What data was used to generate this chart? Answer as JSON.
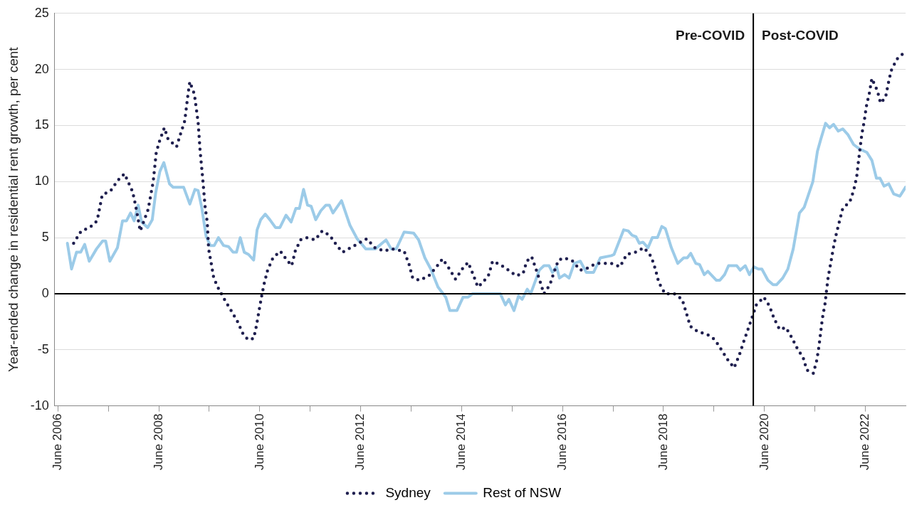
{
  "chart_data": {
    "type": "line",
    "ylabel": "Year-ended change in residential rent growth, per cent",
    "xlim": [
      "2006-05-09",
      "2023-03-19"
    ],
    "xticks": [
      {
        "value": "2006-06",
        "label": "June 2006"
      },
      {
        "value": "2007-06",
        "label": null
      },
      {
        "value": "2008-06",
        "label": "June 2008"
      },
      {
        "value": "2009-06",
        "label": null
      },
      {
        "value": "2010-06",
        "label": "June 2010"
      },
      {
        "value": "2011-06",
        "label": null
      },
      {
        "value": "2012-06",
        "label": "June 2012"
      },
      {
        "value": "2013-06",
        "label": null
      },
      {
        "value": "2014-06",
        "label": "June 2014"
      },
      {
        "value": "2015-06",
        "label": null
      },
      {
        "value": "2016-06",
        "label": "June 2016"
      },
      {
        "value": "2017-06",
        "label": null
      },
      {
        "value": "2018-06",
        "label": "June 2018"
      },
      {
        "value": "2019-06",
        "label": null
      },
      {
        "value": "2020-06",
        "label": "June 2020"
      },
      {
        "value": "2021-06",
        "label": null
      },
      {
        "value": "2022-06",
        "label": "June 2022"
      }
    ],
    "ylim": [
      -10,
      25
    ],
    "yticks": [
      -10,
      -5,
      0,
      5,
      10,
      15,
      20,
      25
    ],
    "grid": "y",
    "legend": "bottom",
    "marker": "none",
    "ref_lines": [
      {
        "axis": "y",
        "value": 0,
        "color": "#000000"
      },
      {
        "axis": "x",
        "value": "2020-03-12",
        "color": "#000000"
      }
    ],
    "annotations": [
      "Pre-COVID",
      "Post-COVID"
    ],
    "series": [
      {
        "name": "Sydney",
        "color": "#1f1f4f",
        "line_style": "dotted",
        "x": [
          "2006-09-23",
          "2006-11-17",
          "2007-01-18",
          "2007-03-12",
          "2007-04-18",
          "2007-06-19",
          "2007-08-09",
          "2007-09-26",
          "2007-11-24",
          "2007-12-15",
          "2008-01-18",
          "2008-03-15",
          "2008-04-21",
          "2008-05-13",
          "2008-06-08",
          "2008-07-11",
          "2008-08-06",
          "2008-10-07",
          "2008-11-06",
          "2008-12-05",
          "2008-12-30",
          "2009-01-11",
          "2009-02-13",
          "2009-03-12",
          "2009-03-26",
          "2009-04-14",
          "2009-05-02",
          "2009-05-17",
          "2009-05-27",
          "2009-06-15",
          "2009-07-03",
          "2009-08-09",
          "2009-09-23",
          "2009-11-06",
          "2009-12-23",
          "2010-01-28",
          "2010-03-08",
          "2010-04-18",
          "2010-05-09",
          "2010-05-27",
          "2010-06-15",
          "2010-07-03",
          "2010-07-28",
          "2010-09-05",
          "2010-10-28",
          "2010-12-15",
          "2011-01-18",
          "2011-02-13",
          "2011-03-23",
          "2011-05-06",
          "2011-07-07",
          "2011-08-27",
          "2011-10-21",
          "2011-12-05",
          "2012-01-21",
          "2012-03-19",
          "2012-07-14",
          "2012-09-12",
          "2012-11-17",
          "2013-01-07",
          "2013-04-11",
          "2013-05-17",
          "2013-06-12",
          "2013-08-02",
          "2013-10-07",
          "2013-12-01",
          "2014-01-14",
          "2014-03-05",
          "2014-04-18",
          "2014-06-05",
          "2014-07-18",
          "2014-08-24",
          "2014-09-26",
          "2014-11-02",
          "2014-12-15",
          "2015-01-11",
          "2015-03-08",
          "2015-05-06",
          "2015-06-30",
          "2015-08-20",
          "2015-09-15",
          "2015-10-21",
          "2015-11-24",
          "2015-12-23",
          "2016-01-18",
          "2016-03-01",
          "2016-03-30",
          "2016-05-02",
          "2016-06-15",
          "2016-08-13",
          "2016-10-07",
          "2016-12-01",
          "2017-01-28",
          "2017-03-26",
          "2017-05-20",
          "2017-07-21",
          "2017-09-08",
          "2017-11-09",
          "2018-01-11",
          "2018-03-05",
          "2018-04-03",
          "2018-04-28",
          "2018-06-12",
          "2018-08-17",
          "2018-10-14",
          "2018-11-13",
          "2018-12-12",
          "2019-02-06",
          "2019-04-11",
          "2019-06-08",
          "2019-07-25",
          "2019-09-15",
          "2019-10-25",
          "2019-12-01",
          "2019-12-30",
          "2020-02-02",
          "2020-03-01",
          "2020-04-03",
          "2020-05-27",
          "2020-07-07",
          "2020-08-09",
          "2020-09-19",
          "2020-11-02",
          "2020-12-15",
          "2021-01-25",
          "2021-03-08",
          "2021-04-03",
          "2021-05-20",
          "2021-06-15",
          "2021-06-30",
          "2021-07-25",
          "2021-08-13",
          "2021-08-24",
          "2021-09-05",
          "2021-09-23",
          "2021-10-11",
          "2021-10-29",
          "2021-11-24",
          "2021-12-19",
          "2022-02-09",
          "2022-03-08",
          "2022-03-30",
          "2022-04-11",
          "2022-05-06",
          "2022-05-24",
          "2022-06-08",
          "2022-06-30",
          "2022-07-18",
          "2022-08-27",
          "2022-09-19",
          "2022-10-25",
          "2022-11-13",
          "2022-12-05",
          "2023-01-14",
          "2023-02-27"
        ],
        "values": [
          4.5,
          5.6,
          5.9,
          6.5,
          8.8,
          9.2,
          10.1,
          10.7,
          9.1,
          7.9,
          5.6,
          7.5,
          10.0,
          12.6,
          13.7,
          14.8,
          13.8,
          13.1,
          14.3,
          15.4,
          17.9,
          18.9,
          17.8,
          15.3,
          12.8,
          10.3,
          7.7,
          6.4,
          4.0,
          2.7,
          1.4,
          0.4,
          -0.6,
          -1.5,
          -2.5,
          -3.5,
          -4.1,
          -4.0,
          -2.8,
          -1.5,
          -0.2,
          0.9,
          2.1,
          3.2,
          3.8,
          3.0,
          2.5,
          3.8,
          4.8,
          5.0,
          4.8,
          5.6,
          5.2,
          4.4,
          3.7,
          4.1,
          4.9,
          4.1,
          3.8,
          4.0,
          3.8,
          2.6,
          1.4,
          1.2,
          1.6,
          2.4,
          3.1,
          2.2,
          1.3,
          2.2,
          2.8,
          1.7,
          0.6,
          1.0,
          1.7,
          2.9,
          2.6,
          2.1,
          1.6,
          1.8,
          2.9,
          3.3,
          2.1,
          1.0,
          0.0,
          0.8,
          1.9,
          3.0,
          3.2,
          2.9,
          2.1,
          2.3,
          2.7,
          2.7,
          2.7,
          2.4,
          3.5,
          3.7,
          4.1,
          3.3,
          2.2,
          1.0,
          0.0,
          0.0,
          -0.5,
          -1.7,
          -2.9,
          -3.4,
          -3.6,
          -4.1,
          -5.0,
          -6.0,
          -6.6,
          -5.5,
          -4.4,
          -3.2,
          -2.2,
          -1.0,
          -0.3,
          -1.1,
          -2.2,
          -3.2,
          -3.0,
          -3.9,
          -4.9,
          -5.7,
          -6.8,
          -7.1,
          -5.9,
          -4.7,
          -2.2,
          -0.9,
          0.3,
          1.5,
          2.7,
          4.0,
          5.1,
          6.4,
          7.6,
          8.2,
          9.2,
          10.4,
          11.7,
          14.2,
          15.4,
          16.7,
          17.9,
          19.2,
          18.1,
          17.0,
          17.5,
          18.7,
          19.9,
          20.9,
          21.4
        ]
      },
      {
        "name": "Rest of NSW",
        "color": "#9ccbe8",
        "line_style": "solid",
        "x": [
          "2006-08-09",
          "2006-09-08",
          "2006-10-14",
          "2006-11-13",
          "2006-12-12",
          "2007-01-14",
          "2007-03-08",
          "2007-04-21",
          "2007-05-13",
          "2007-06-12",
          "2007-08-06",
          "2007-09-12",
          "2007-10-11",
          "2007-11-09",
          "2007-12-05",
          "2008-01-03",
          "2008-01-28",
          "2008-03-12",
          "2008-04-14",
          "2008-05-09",
          "2008-06-08",
          "2008-07-07",
          "2008-08-17",
          "2008-09-12",
          "2008-11-27",
          "2009-01-11",
          "2009-02-17",
          "2009-03-12",
          "2009-04-07",
          "2009-05-09",
          "2009-06-08",
          "2009-07-07",
          "2009-08-06",
          "2009-09-12",
          "2009-10-18",
          "2009-11-20",
          "2009-12-15",
          "2010-01-11",
          "2010-02-09",
          "2010-03-12",
          "2010-04-18",
          "2010-05-13",
          "2010-06-08",
          "2010-07-11",
          "2010-08-13",
          "2010-09-23",
          "2010-10-25",
          "2010-12-08",
          "2011-01-14",
          "2011-02-17",
          "2011-03-15",
          "2011-04-14",
          "2011-05-13",
          "2011-06-08",
          "2011-07-11",
          "2011-08-17",
          "2011-09-23",
          "2011-10-18",
          "2011-11-13",
          "2012-01-14",
          "2012-03-15",
          "2012-05-06",
          "2012-07-07",
          "2012-09-15",
          "2012-12-01",
          "2013-01-07",
          "2013-02-13",
          "2013-04-11",
          "2013-06-19",
          "2013-07-25",
          "2013-09-08",
          "2013-10-21",
          "2013-12-12",
          "2014-02-06",
          "2014-03-08",
          "2014-04-28",
          "2014-06-12",
          "2014-07-18",
          "2014-08-20",
          "2015-03-08",
          "2015-04-14",
          "2015-05-09",
          "2015-06-15",
          "2015-07-18",
          "2015-08-13",
          "2015-09-19",
          "2015-10-14",
          "2015-12-15",
          "2016-01-18",
          "2016-02-24",
          "2016-03-19",
          "2016-04-18",
          "2016-05-09",
          "2016-06-15",
          "2016-07-18",
          "2016-08-24",
          "2016-10-07",
          "2016-11-20",
          "2017-01-11",
          "2017-03-01",
          "2017-05-20",
          "2017-06-08",
          "2017-08-17",
          "2017-09-19",
          "2017-10-18",
          "2017-11-13",
          "2017-12-08",
          "2018-01-03",
          "2018-02-09",
          "2018-03-12",
          "2018-04-18",
          "2018-05-20",
          "2018-06-15",
          "2018-07-28",
          "2018-09-12",
          "2018-10-25",
          "2018-11-20",
          "2018-12-15",
          "2019-01-21",
          "2019-02-17",
          "2019-03-23",
          "2019-04-18",
          "2019-06-19",
          "2019-07-14",
          "2019-08-17",
          "2019-09-15",
          "2019-11-13",
          "2019-12-08",
          "2020-01-14",
          "2020-02-13",
          "2020-03-15",
          "2020-04-18",
          "2020-05-13",
          "2020-06-26",
          "2020-08-02",
          "2020-08-27",
          "2020-10-11",
          "2020-11-17",
          "2020-12-26",
          "2021-02-09",
          "2021-03-15",
          "2021-05-17",
          "2021-06-19",
          "2021-07-14",
          "2021-08-17",
          "2021-09-15",
          "2021-10-14",
          "2021-11-17",
          "2021-12-19",
          "2022-01-25",
          "2022-03-08",
          "2022-04-21",
          "2022-06-12",
          "2022-07-18",
          "2022-08-20",
          "2022-09-15",
          "2022-10-14",
          "2022-11-17",
          "2022-12-23",
          "2023-02-06",
          "2023-03-19"
        ],
        "values": [
          4.5,
          2.2,
          3.7,
          3.7,
          4.4,
          2.9,
          4.0,
          4.7,
          4.7,
          2.9,
          4.1,
          6.5,
          6.5,
          7.2,
          6.5,
          7.9,
          6.4,
          5.9,
          6.6,
          9.0,
          10.9,
          11.7,
          9.8,
          9.5,
          9.5,
          8.0,
          9.3,
          9.2,
          7.7,
          5.1,
          4.3,
          4.3,
          5.0,
          4.3,
          4.2,
          3.7,
          3.7,
          5.0,
          3.7,
          3.5,
          3.0,
          5.7,
          6.6,
          7.1,
          6.6,
          5.9,
          5.9,
          7.0,
          6.4,
          7.6,
          7.6,
          9.3,
          7.9,
          7.8,
          6.6,
          7.4,
          7.9,
          7.9,
          7.2,
          8.3,
          6.1,
          4.9,
          4.0,
          4.0,
          4.8,
          4.0,
          4.0,
          5.5,
          5.4,
          4.8,
          3.2,
          2.2,
          0.6,
          -0.3,
          -1.5,
          -1.5,
          -0.3,
          -0.3,
          0.0,
          0.0,
          -1.0,
          -0.5,
          -1.5,
          -0.2,
          -0.5,
          0.4,
          0.0,
          2.1,
          2.5,
          2.5,
          1.9,
          2.4,
          1.4,
          1.7,
          1.4,
          2.7,
          2.9,
          1.9,
          1.9,
          3.2,
          3.4,
          3.5,
          5.7,
          5.6,
          5.2,
          5.1,
          4.5,
          4.6,
          4.1,
          5.0,
          5.0,
          6.0,
          5.8,
          4.1,
          2.7,
          3.2,
          3.2,
          3.6,
          2.7,
          2.6,
          1.7,
          2.0,
          1.2,
          1.2,
          1.7,
          2.5,
          2.5,
          2.1,
          2.5,
          1.7,
          2.4,
          2.2,
          2.2,
          1.2,
          0.8,
          0.8,
          1.4,
          2.2,
          4.0,
          7.2,
          7.7,
          10.0,
          12.7,
          13.8,
          15.2,
          14.8,
          15.1,
          14.5,
          14.7,
          14.2,
          13.3,
          12.9,
          12.6,
          11.9,
          10.3,
          10.3,
          9.6,
          9.8,
          8.9,
          8.7,
          9.5
        ]
      }
    ]
  }
}
